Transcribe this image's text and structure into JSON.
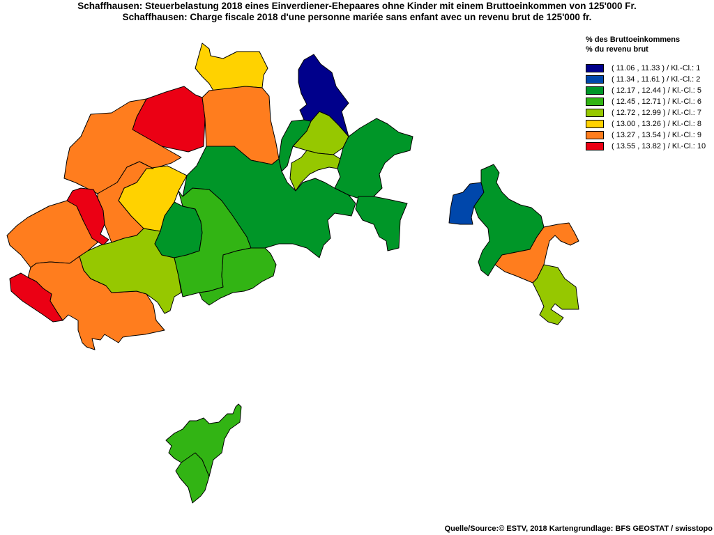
{
  "title": {
    "de": "Schaffhausen: Steuerbelastung 2018 eines Einverdiener-Ehepaares ohne Kinder mit einem Bruttoeinkommen von 125'000 Fr.",
    "fr": "Schaffhausen: Charge fiscale 2018 d'une personne mariée sans enfant avec un revenu brut de 125'000 fr."
  },
  "legend": {
    "heading_de": "% des Bruttoeinkommens",
    "heading_fr": "% du revenu brut",
    "classes": [
      {
        "label": "( 11.06 , 11.33 ) / Kl.-Cl.: 1",
        "color": "#00008b"
      },
      {
        "label": "( 11.34 , 11.61 ) / Kl.-Cl.: 2",
        "color": "#0047ab"
      },
      {
        "label": "( 12.17 , 12.44 ) / Kl.-Cl.: 5",
        "color": "#009628"
      },
      {
        "label": "( 12.45 , 12.71 ) / Kl.-Cl.: 6",
        "color": "#32b414"
      },
      {
        "label": "( 12.72 , 12.99 ) / Kl.-Cl.: 7",
        "color": "#96c800"
      },
      {
        "label": "( 13.00 , 13.26 ) / Kl.-Cl.: 8",
        "color": "#ffd200"
      },
      {
        "label": "( 13.27 , 13.54 ) / Kl.-Cl.: 9",
        "color": "#ff7d1e"
      },
      {
        "label": "( 13.55 , 13.82 ) / Kl.-Cl.: 10",
        "color": "#eb0014"
      }
    ]
  },
  "map": {
    "regions": [
      {
        "cls": 8
      },
      {
        "cls": 10
      },
      {
        "cls": 9
      },
      {
        "cls": 9
      },
      {
        "cls": 9
      },
      {
        "cls": 8
      },
      {
        "cls": 10
      },
      {
        "cls": 9
      },
      {
        "cls": 10
      },
      {
        "cls": 9
      },
      {
        "cls": 7
      },
      {
        "cls": 5
      },
      {
        "cls": 6
      },
      {
        "cls": 5
      },
      {
        "cls": 6
      },
      {
        "cls": 7
      },
      {
        "cls": 5
      },
      {
        "cls": 7
      },
      {
        "cls": 1
      },
      {
        "cls": 5
      },
      {
        "cls": 5
      },
      {
        "cls": 2
      },
      {
        "cls": 5
      },
      {
        "cls": 9
      },
      {
        "cls": 7
      },
      {
        "cls": 6
      },
      {
        "cls": 1
      }
    ]
  },
  "source": "Quelle/Source:© ESTV, 2018 Kartengrundlage: BFS GEOSTAT / swisstopo"
}
